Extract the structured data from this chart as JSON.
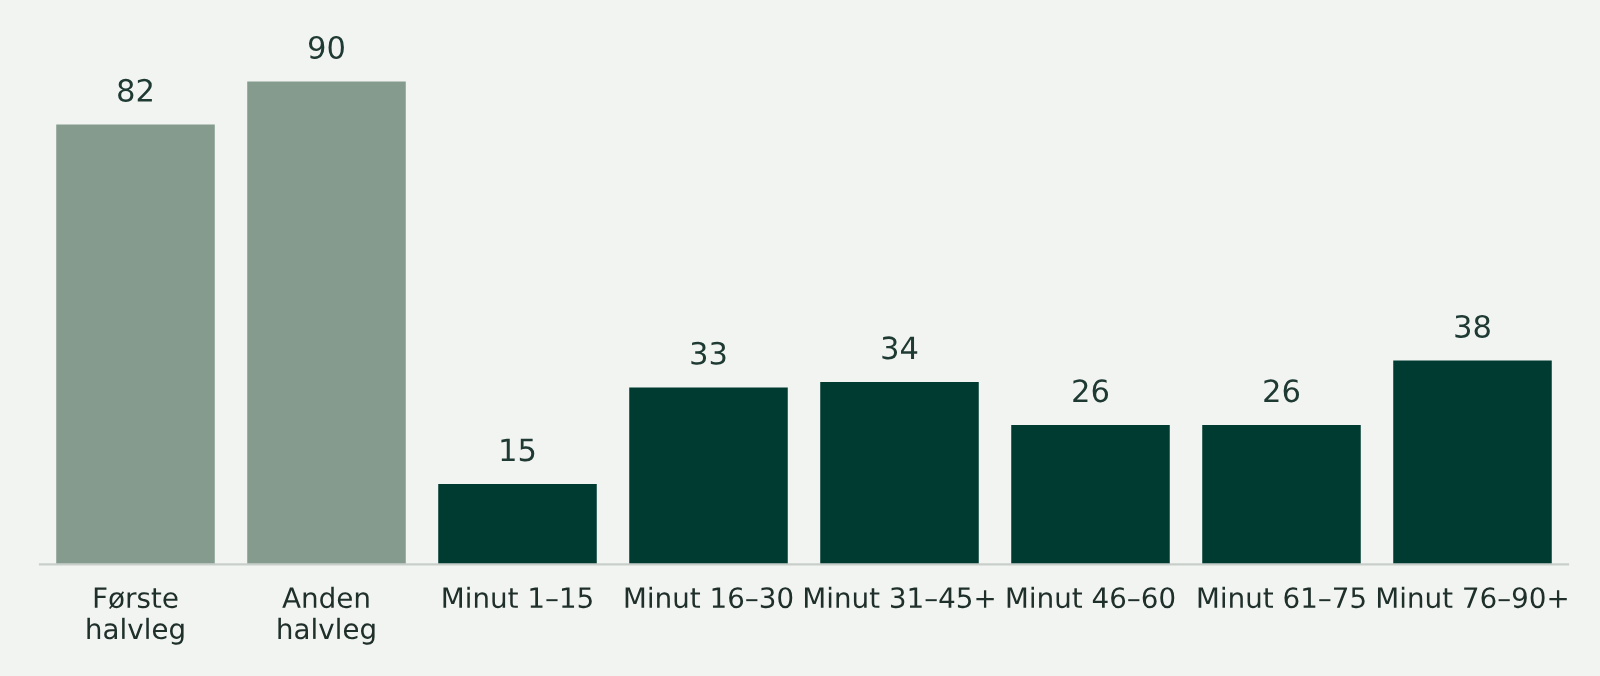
{
  "chart_data": {
    "type": "bar",
    "categories": [
      "Første\nhalvleg",
      "Anden\nhalvleg",
      "Minut 1–15",
      "Minut 16–30",
      "Minut 31–45+",
      "Minut 46–60",
      "Minut 61–75",
      "Minut 76–90+"
    ],
    "values": [
      82,
      90,
      15,
      33,
      34,
      26,
      26,
      38
    ],
    "colors": [
      "#849b8e",
      "#849b8e",
      "#003b31",
      "#003b31",
      "#003b31",
      "#003b31",
      "#003b31",
      "#003b31"
    ],
    "data_labels": true,
    "grid": false,
    "legend": false
  }
}
